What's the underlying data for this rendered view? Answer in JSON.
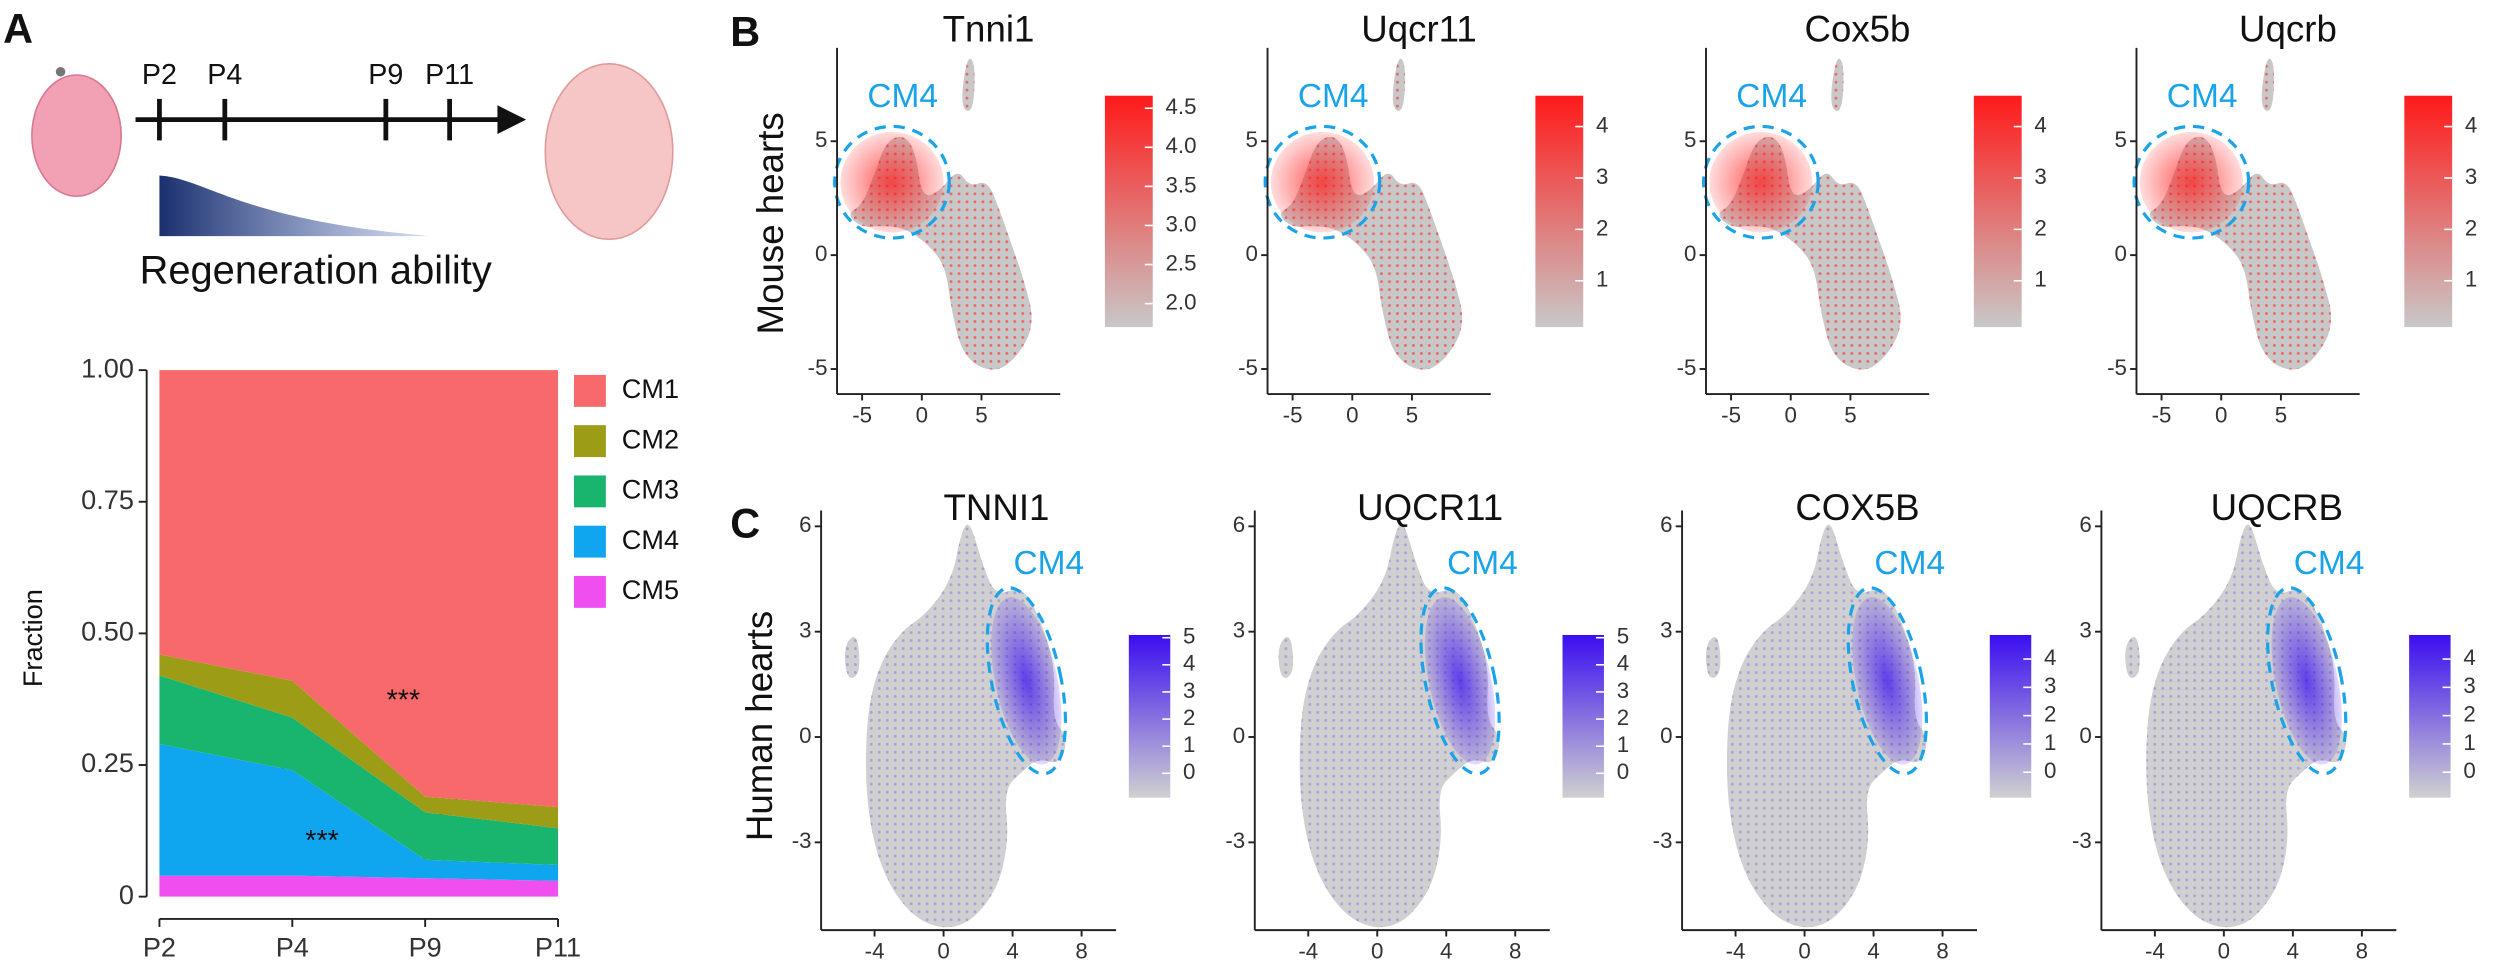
{
  "panel_labels": [
    "A",
    "B",
    "C"
  ],
  "schematic": {
    "timepoints": [
      "P2",
      "P4",
      "P9",
      "P11"
    ],
    "caption": "Regeneration ability"
  },
  "row_labels": [
    "Mouse hearts",
    "Human hearts"
  ],
  "chart_data": [
    {
      "type": "area",
      "stacked": true,
      "categories": [
        "P2",
        "P4",
        "P9",
        "P11"
      ],
      "ylabel": "Fraction",
      "ylim": [
        0,
        1
      ],
      "yticks": [
        0,
        0.25,
        {
          "value": 0.5,
          "label": "0.50"
        },
        0.75,
        {
          "value": 1,
          "label": "1.00"
        }
      ],
      "annotations": [
        "***",
        "***"
      ],
      "series": [
        {
          "name": "CM1",
          "color": "#f8696b",
          "values": [
            0.54,
            0.59,
            0.81,
            0.83
          ]
        },
        {
          "name": "CM2",
          "color": "#9c9c16",
          "values": [
            0.04,
            0.07,
            0.03,
            0.04
          ]
        },
        {
          "name": "CM3",
          "color": "#19b56e",
          "values": [
            0.13,
            0.1,
            0.09,
            0.07
          ]
        },
        {
          "name": "CM4",
          "color": "#10a6ef",
          "values": [
            0.25,
            0.2,
            0.035,
            0.03
          ]
        },
        {
          "name": "CM5",
          "color": "#f04ff0",
          "values": [
            0.04,
            0.04,
            0.035,
            0.03
          ]
        }
      ]
    },
    {
      "type": "scatter",
      "species": "mouse",
      "title": "Tnni1",
      "annotation": "CM4",
      "xlim": [
        -7.1,
        11.6
      ],
      "ylim": [
        -6.1,
        9.1
      ],
      "xticks": [
        -5,
        0,
        5
      ],
      "yticks": [
        -5,
        0,
        5
      ],
      "colors": [
        "#c8c8c8",
        "#ff1a1a"
      ],
      "colorbar": {
        "lim": [
          1.7,
          4.66
        ],
        "ticks": [
          {
            "value": 2,
            "label": "2.0"
          },
          2.5,
          {
            "value": 3,
            "label": "3.0"
          },
          3.5,
          {
            "value": 4,
            "label": "4.0"
          },
          4.5
        ]
      }
    },
    {
      "type": "scatter",
      "species": "mouse",
      "title": "Uqcr11",
      "annotation": "CM4",
      "xlim": [
        -7.1,
        11.6
      ],
      "ylim": [
        -6.1,
        9.1
      ],
      "xticks": [
        -5,
        0,
        5
      ],
      "yticks": [
        -5,
        0,
        5
      ],
      "colors": [
        "#c8c8c8",
        "#ff1a1a"
      ],
      "colorbar": {
        "lim": [
          0.1,
          4.6
        ],
        "ticks": [
          1,
          2,
          3,
          4
        ]
      }
    },
    {
      "type": "scatter",
      "species": "mouse",
      "title": "Cox5b",
      "annotation": "CM4",
      "xlim": [
        -7.1,
        11.6
      ],
      "ylim": [
        -6.1,
        9.1
      ],
      "xticks": [
        -5,
        0,
        5
      ],
      "yticks": [
        -5,
        0,
        5
      ],
      "colors": [
        "#c8c8c8",
        "#ff1a1a"
      ],
      "colorbar": {
        "lim": [
          0.1,
          4.6
        ],
        "ticks": [
          1,
          2,
          3,
          4
        ]
      }
    },
    {
      "type": "scatter",
      "species": "mouse",
      "title": "Uqcrb",
      "annotation": "CM4",
      "xlim": [
        -7.1,
        11.6
      ],
      "ylim": [
        -6.1,
        9.1
      ],
      "xticks": [
        -5,
        0,
        5
      ],
      "yticks": [
        -5,
        0,
        5
      ],
      "colors": [
        "#c8c8c8",
        "#ff1a1a"
      ],
      "colorbar": {
        "lim": [
          0.1,
          4.6
        ],
        "ticks": [
          1,
          2,
          3,
          4
        ]
      }
    },
    {
      "type": "scatter",
      "species": "human",
      "title": "TNNI1",
      "annotation": "CM4",
      "xlim": [
        -7.1,
        10
      ],
      "ylim": [
        -5.5,
        6.45
      ],
      "xticks": [
        -4,
        0,
        4,
        8
      ],
      "yticks": [
        -3,
        0,
        3,
        6
      ],
      "colors": [
        "#d0d0d0",
        "#3b0ef0"
      ],
      "colorbar": {
        "lim": [
          -0.9,
          5.1
        ],
        "ticks": [
          0,
          1,
          2,
          3,
          4,
          5
        ]
      }
    },
    {
      "type": "scatter",
      "species": "human",
      "title": "UQCR11",
      "annotation": "CM4",
      "xlim": [
        -7.1,
        10
      ],
      "ylim": [
        -5.5,
        6.45
      ],
      "xticks": [
        -4,
        0,
        4,
        8
      ],
      "yticks": [
        -3,
        0,
        3,
        6
      ],
      "colors": [
        "#d0d0d0",
        "#3b0ef0"
      ],
      "colorbar": {
        "lim": [
          -0.9,
          5.1
        ],
        "ticks": [
          0,
          1,
          2,
          3,
          4,
          5
        ]
      }
    },
    {
      "type": "scatter",
      "species": "human",
      "title": "COX5B",
      "annotation": "CM4",
      "xlim": [
        -7.1,
        10
      ],
      "ylim": [
        -5.5,
        6.45
      ],
      "xticks": [
        -4,
        0,
        4,
        8
      ],
      "yticks": [
        -3,
        0,
        3,
        6
      ],
      "colors": [
        "#d0d0d0",
        "#3b0ef0"
      ],
      "colorbar": {
        "lim": [
          -0.9,
          4.85
        ],
        "ticks": [
          0,
          1,
          2,
          3,
          4
        ]
      }
    },
    {
      "type": "scatter",
      "species": "human",
      "title": "UQCRB",
      "annotation": "CM4",
      "xlim": [
        -7.1,
        10
      ],
      "ylim": [
        -5.5,
        6.45
      ],
      "xticks": [
        -4,
        0,
        4,
        8
      ],
      "yticks": [
        -3,
        0,
        3,
        6
      ],
      "colors": [
        "#d0d0d0",
        "#3b0ef0"
      ],
      "colorbar": {
        "lim": [
          -0.9,
          4.85
        ],
        "ticks": [
          0,
          1,
          2,
          3,
          4
        ]
      }
    }
  ]
}
